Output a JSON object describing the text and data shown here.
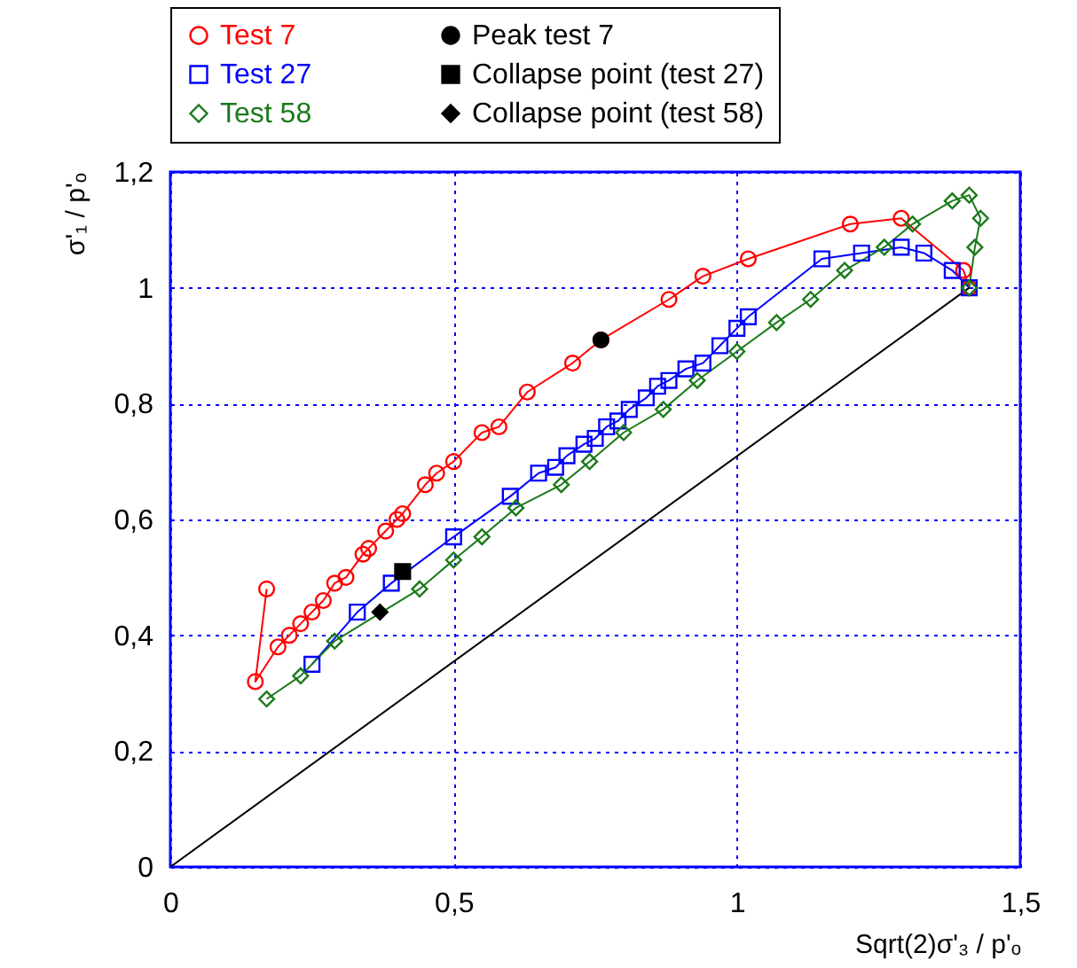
{
  "chart_data": {
    "type": "line",
    "xlabel": "Sqrt(2)σ'₃ / p'ₒ",
    "ylabel": "σ'₁ / p'ₒ",
    "xlim": [
      0,
      1.5
    ],
    "ylim": [
      0,
      1.2
    ],
    "xticks": [
      0,
      {
        "value": 0.5,
        "label": "0,5"
      },
      1,
      {
        "value": 1.5,
        "label": "1,5"
      }
    ],
    "yticks": [
      0,
      {
        "value": 0.2,
        "label": "0,2"
      },
      {
        "value": 0.4,
        "label": "0,4"
      },
      {
        "value": 0.6,
        "label": "0,6"
      },
      {
        "value": 0.8,
        "label": "0,8"
      },
      1,
      {
        "value": 1.2,
        "label": "1,2"
      }
    ],
    "grid": true,
    "legend": "top",
    "series": [
      {
        "name": "Test 7",
        "type": "line",
        "color": "#ff0000",
        "marker": "circle",
        "x": [
          1.41,
          1.4,
          1.29,
          1.2,
          1.02,
          0.94,
          0.88,
          0.76,
          0.71,
          0.63,
          0.58,
          0.55,
          0.5,
          0.47,
          0.45,
          0.41,
          0.4,
          0.38,
          0.35,
          0.34,
          0.31,
          0.29,
          0.27,
          0.25,
          0.23,
          0.21,
          0.19,
          0.15,
          0.17
        ],
        "values": [
          1.0,
          1.03,
          1.12,
          1.11,
          1.05,
          1.02,
          0.98,
          0.91,
          0.87,
          0.82,
          0.76,
          0.75,
          0.7,
          0.68,
          0.66,
          0.61,
          0.6,
          0.58,
          0.55,
          0.54,
          0.5,
          0.49,
          0.46,
          0.44,
          0.42,
          0.4,
          0.38,
          0.32,
          0.48
        ]
      },
      {
        "name": "Peak test 7",
        "type": "scatter",
        "color": "#000000",
        "marker": "circle",
        "x": [
          0.76
        ],
        "values": [
          0.91
        ]
      },
      {
        "name": "Test 27",
        "type": "line",
        "color": "#0000ff",
        "marker": "square",
        "x": [
          1.41,
          1.38,
          1.33,
          1.29,
          1.22,
          1.15,
          1.02,
          1.0,
          0.97,
          0.94,
          0.91,
          0.88,
          0.86,
          0.84,
          0.81,
          0.79,
          0.77,
          0.75,
          0.73,
          0.7,
          0.68,
          0.65,
          0.6,
          0.5,
          0.39,
          0.33,
          0.25
        ],
        "values": [
          1.0,
          1.03,
          1.06,
          1.07,
          1.06,
          1.05,
          0.95,
          0.93,
          0.9,
          0.87,
          0.86,
          0.84,
          0.83,
          0.81,
          0.79,
          0.77,
          0.76,
          0.74,
          0.73,
          0.71,
          0.69,
          0.68,
          0.64,
          0.57,
          0.49,
          0.44,
          0.35
        ]
      },
      {
        "name": "Collapse point (test 27)",
        "type": "scatter",
        "color": "#000000",
        "marker": "square",
        "x": [
          0.41
        ],
        "values": [
          0.51
        ]
      },
      {
        "name": "Test 58",
        "type": "line",
        "color": "#1a7a1a",
        "marker": "diamond",
        "x": [
          1.41,
          1.42,
          1.43,
          1.41,
          1.38,
          1.31,
          1.26,
          1.19,
          1.13,
          1.07,
          1.0,
          0.93,
          0.87,
          0.8,
          0.74,
          0.69,
          0.61,
          0.55,
          0.5,
          0.44,
          0.29,
          0.23,
          0.17
        ],
        "values": [
          1.0,
          1.07,
          1.12,
          1.16,
          1.15,
          1.11,
          1.07,
          1.03,
          0.98,
          0.94,
          0.89,
          0.84,
          0.79,
          0.75,
          0.7,
          0.66,
          0.62,
          0.57,
          0.53,
          0.48,
          0.39,
          0.33,
          0.29
        ]
      },
      {
        "name": "Collapse point (test 58)",
        "type": "scatter",
        "color": "#000000",
        "marker": "diamond",
        "x": [
          0.37
        ],
        "values": [
          0.44
        ]
      },
      {
        "type": "line",
        "color": "#000000",
        "marker": "none",
        "x": [
          0,
          1.41
        ],
        "values": [
          0,
          1.0
        ]
      }
    ]
  }
}
